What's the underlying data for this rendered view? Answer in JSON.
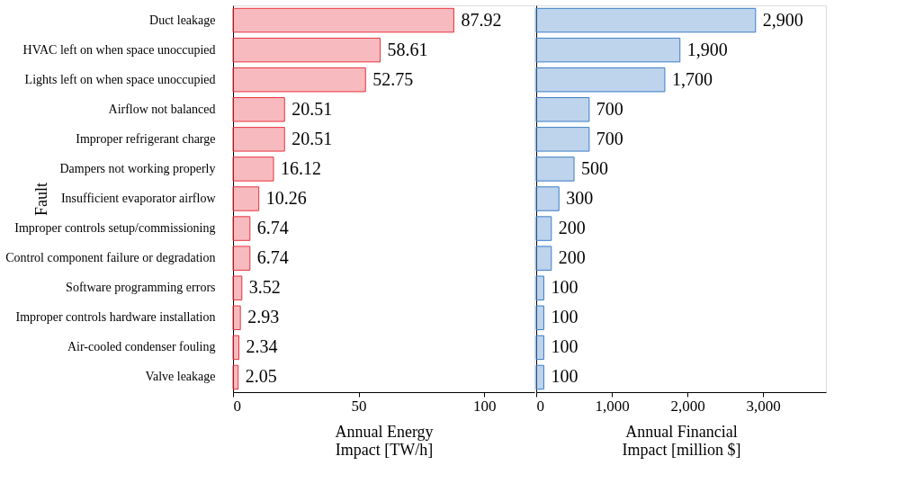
{
  "chart_data": [
    {
      "type": "bar",
      "orientation": "horizontal",
      "ylabel": "Fault",
      "xlabel": "Annual Energy Impact [TW/h]",
      "categories": [
        "Duct leakage",
        "HVAC left on when space unoccupied",
        "Lights left on when space unoccupied",
        "Airflow not balanced",
        "Improper refrigerant charge",
        "Dampers not working properly",
        "Insufficient evaporator airflow",
        "Improper controls setup/commissioning",
        "Control component failure or degradation",
        "Software programming errors",
        "Improper controls hardware installation",
        "Air-cooled condenser fouling",
        "Valve leakage"
      ],
      "series": [
        {
          "color": "#e8323c",
          "values": [
            87.92,
            58.61,
            52.75,
            20.51,
            20.51,
            16.12,
            10.26,
            6.74,
            6.74,
            3.52,
            2.93,
            2.34,
            2.05
          ]
        }
      ],
      "xlim": [
        0,
        120
      ],
      "xticks": [
        0,
        50,
        100
      ],
      "data_labels": true,
      "grid": false
    },
    {
      "type": "bar",
      "orientation": "horizontal",
      "xlabel": "Annual Financial Impact [million $]",
      "tick_labels": "x",
      "categories": [
        null,
        null,
        null,
        null,
        null,
        null,
        null,
        null,
        null,
        null,
        null,
        null,
        null
      ],
      "series": [
        {
          "color": "#3a7cc4",
          "values": [
            2900,
            1900,
            1700,
            700,
            700,
            500,
            300,
            200,
            200,
            100,
            100,
            100,
            100
          ],
          "value_labels": [
            "2,900",
            "1,900",
            "1,700",
            "700",
            "700",
            "500",
            "300",
            "200",
            "200",
            "100",
            "100",
            "100",
            "100"
          ]
        }
      ],
      "xlim": [
        0,
        3830
      ],
      "xticks": [
        0,
        {
          "value": 1000,
          "label": "1,000"
        },
        {
          "value": 2000,
          "label": "2,000"
        },
        {
          "value": 3000,
          "label": "3,000"
        }
      ],
      "grid": false
    }
  ]
}
